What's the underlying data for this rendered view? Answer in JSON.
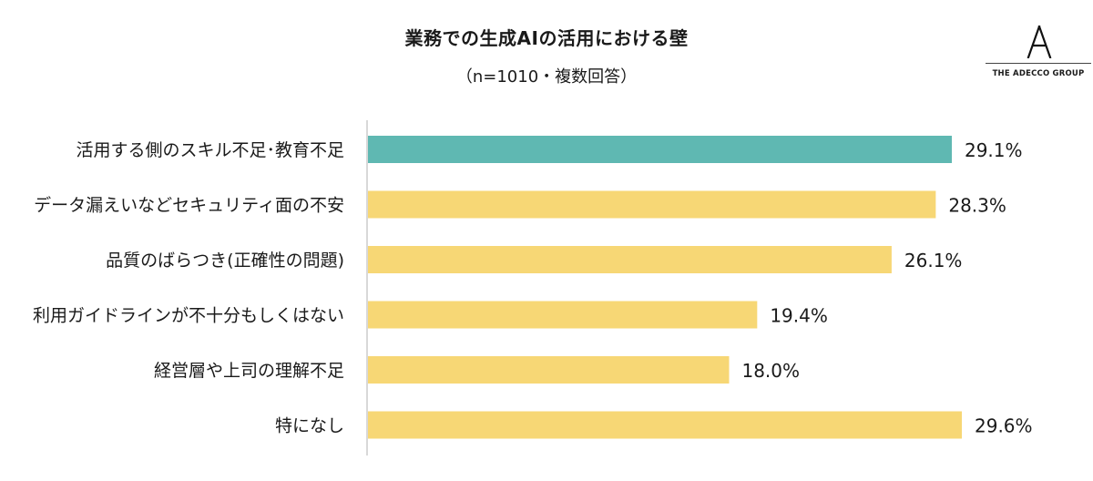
{
  "title": "業務での生成AIの活用における壁",
  "subtitle": "（n=1010・複数回答）",
  "logo": {
    "mark": "A",
    "text": "THE ADECCO GROUP"
  },
  "colors": {
    "highlight": "#5fb8b2",
    "bar": "#f7d775",
    "axis": "#cccccc",
    "text": "#1a1a1a"
  },
  "chart_data": {
    "type": "bar",
    "orientation": "horizontal",
    "categories": [
      "活用する側のスキル不足･教育不足",
      "データ漏えいなどセキュリティ面の不安",
      "品質のばらつき(正確性の問題)",
      "利用ガイドラインが不十分もしくはない",
      "経営層や上司の理解不足",
      "特になし"
    ],
    "values": [
      29.1,
      28.3,
      26.1,
      19.4,
      18.0,
      29.6
    ],
    "value_labels": [
      "29.1%",
      "28.3%",
      "26.1%",
      "19.4%",
      "18.0%",
      "29.6%"
    ],
    "unit": "%",
    "highlight_index": 0,
    "xlim": [
      0,
      29.6
    ]
  }
}
